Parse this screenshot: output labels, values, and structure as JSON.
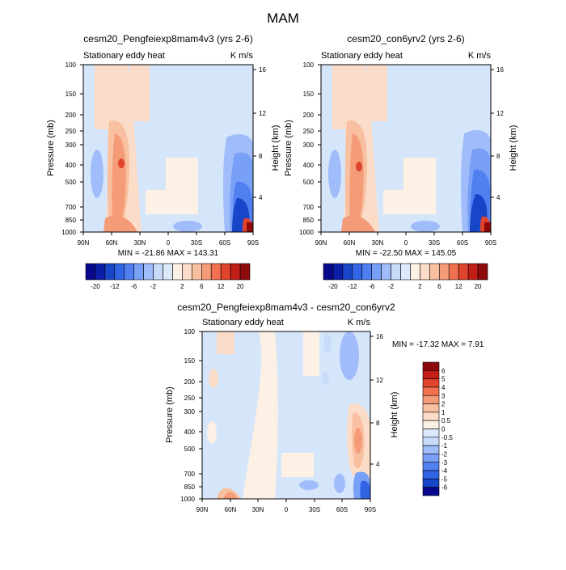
{
  "main_title": "MAM",
  "colors": {
    "palette": [
      "#08088c",
      "#0a1ea8",
      "#1846c8",
      "#3264e6",
      "#5080f0",
      "#78a0f6",
      "#a0bcfa",
      "#c8dcfa",
      "#dce8fb",
      "#fdf0e4",
      "#fbdcc8",
      "#f8c0a0",
      "#f49c78",
      "#f07050",
      "#e0442c",
      "#c01e16",
      "#8c0a0a"
    ],
    "background_blue": "#d6e6fa"
  },
  "chart_data": [
    {
      "type": "heatmap",
      "title": "cesm20_Pengfeiexp8mam4v3 (yrs 2-6)",
      "left_label": "Stationary eddy heat",
      "right_label": "K m/s",
      "ylabel": "Pressure (mb)",
      "y2label": "Height (km)",
      "x_ticks": [
        "90N",
        "60N",
        "30N",
        "0",
        "30S",
        "60S",
        "90S"
      ],
      "y_ticks": [
        "100",
        "150",
        "200",
        "250",
        "300",
        "400",
        "500",
        "700",
        "850",
        "1000"
      ],
      "y2_ticks": [
        "16",
        "12",
        "8",
        "4"
      ],
      "minmax": "MIN = -21.86   MAX = 143.31",
      "colorbar_labels": [
        "-20",
        "-12",
        "-6",
        "-2",
        "2",
        "6",
        "12",
        "20"
      ]
    },
    {
      "type": "heatmap",
      "title": "cesm20_con6yrv2 (yrs 2-6)",
      "left_label": "Stationary eddy heat",
      "right_label": "K m/s",
      "ylabel": "Pressure (mb)",
      "y2label": "Height (km)",
      "x_ticks": [
        "90N",
        "60N",
        "30N",
        "0",
        "30S",
        "60S",
        "90S"
      ],
      "y_ticks": [
        "100",
        "150",
        "200",
        "250",
        "300",
        "400",
        "500",
        "700",
        "850",
        "1000"
      ],
      "y2_ticks": [
        "16",
        "12",
        "8",
        "4"
      ],
      "minmax": "MIN = -22.50   MAX = 145.05",
      "colorbar_labels": [
        "-20",
        "-12",
        "-6",
        "-2",
        "2",
        "6",
        "12",
        "20"
      ]
    },
    {
      "type": "heatmap",
      "title": "cesm20_Pengfeiexp8mam4v3 - cesm20_con6yrv2",
      "left_label": "Stationary eddy heat",
      "right_label": "K m/s",
      "ylabel": "Pressure (mb)",
      "y2label": "Height (km)",
      "x_ticks": [
        "90N",
        "60N",
        "30N",
        "0",
        "30S",
        "60S",
        "90S"
      ],
      "y_ticks": [
        "100",
        "150",
        "200",
        "250",
        "300",
        "400",
        "500",
        "700",
        "850",
        "1000"
      ],
      "y2_ticks": [
        "16",
        "12",
        "8",
        "4"
      ],
      "minmax": "MIN = -17.32   MAX =   7.91",
      "colorbar_labels": [
        "6",
        "5",
        "4",
        "3",
        "2",
        "1",
        "0.5",
        "0",
        "-0.5",
        "-1",
        "-2",
        "-3",
        "-4",
        "-5",
        "-6"
      ]
    }
  ]
}
